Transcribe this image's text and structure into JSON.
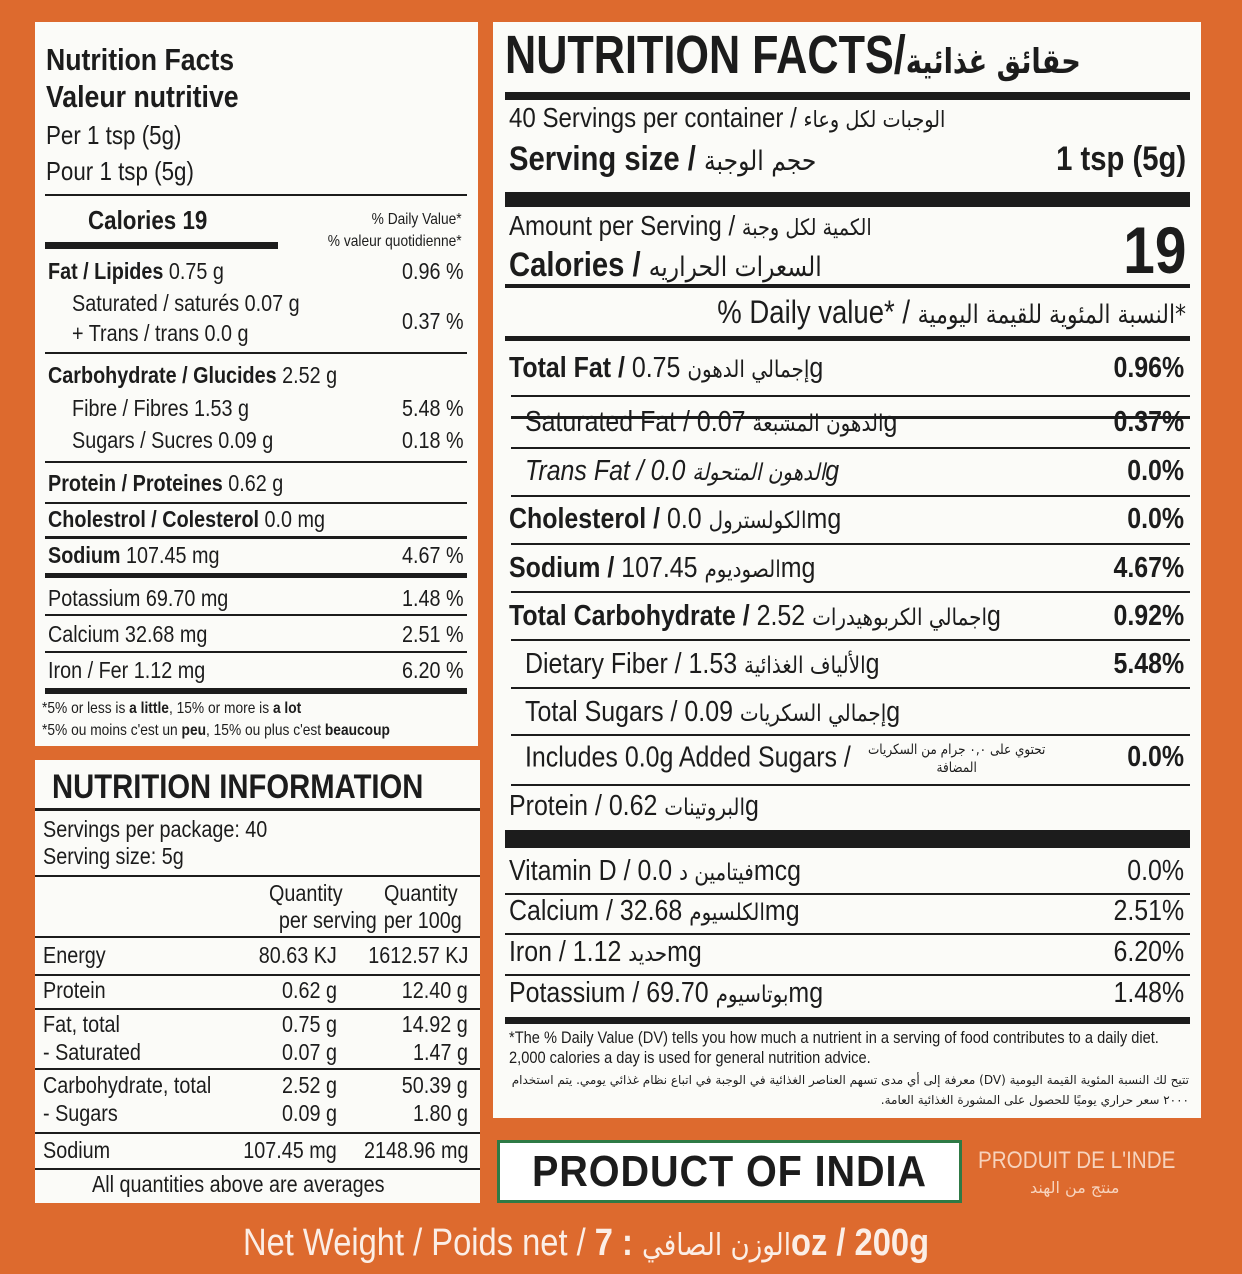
{
  "left_panel": {
    "title_en": "Nutrition Facts",
    "title_fr": "Valeur nutritive",
    "per_en": "Per 1 tsp (5g)",
    "per_fr": "Pour 1 tsp (5g)",
    "calories": "Calories 19",
    "dv_en": "% Daily Value*",
    "dv_fr": "% valeur quotidienne*",
    "rows": [
      {
        "label": "Fat / Lipides",
        "amount": " 0.75 g",
        "dv": "0.96 %"
      },
      {
        "label": "Saturated / saturés 0.07 g",
        "amount": "",
        "dv": ""
      },
      {
        "label": "+ Trans / trans 0.0 g",
        "amount": "",
        "dv": "0.37 %"
      },
      {
        "label": "Carbohydrate / Glucides",
        "amount": " 2.52 g",
        "dv": ""
      },
      {
        "label": "Fibre / Fibres 1.53 g",
        "amount": "",
        "dv": "5.48 %"
      },
      {
        "label": "Sugars / Sucres 0.09 g",
        "amount": "",
        "dv": "0.18 %"
      },
      {
        "label": "Protein / Proteines",
        "amount": " 0.62 g",
        "dv": ""
      },
      {
        "label": "Cholestrol / Colesterol",
        "amount": " 0.0 mg",
        "dv": ""
      },
      {
        "label": "Sodium",
        "amount": " 107.45 mg",
        "dv": "4.67 %"
      },
      {
        "label": "Potassium 69.70 mg",
        "amount": "",
        "dv": "1.48 %"
      },
      {
        "label": "Calcium 32.68 mg",
        "amount": "",
        "dv": "2.51 %"
      },
      {
        "label": "Iron / Fer 1.12 mg",
        "amount": "",
        "dv": "6.20 %"
      }
    ],
    "footnote_en": [
      "*5% or less is ",
      "a little",
      ", 15% or more is ",
      "a lot"
    ],
    "footnote_fr": [
      "*5% ou moins c'est un ",
      "peu",
      ", 15% ou plus c'est ",
      "beaucoup"
    ]
  },
  "info_panel": {
    "title": "NUTRITION INFORMATION",
    "servings": "Servings per package: 40",
    "serving_size": "Serving size: 5g",
    "col1": [
      "Quantity",
      "per serving"
    ],
    "col2": [
      "Quantity",
      "per 100g"
    ],
    "rows": [
      {
        "label": "Energy",
        "v1": "80.63 KJ",
        "v2": "1612.57 KJ"
      },
      {
        "label": "Protein",
        "v1": "0.62 g",
        "v2": "12.40 g"
      },
      {
        "label": "Fat, total",
        "v1": "0.75 g",
        "v2": "14.92 g"
      },
      {
        "label": "- Saturated",
        "v1": "0.07 g",
        "v2": "1.47 g"
      },
      {
        "label": "Carbohydrate, total",
        "v1": "2.52 g",
        "v2": "50.39 g"
      },
      {
        "label": "- Sugars",
        "v1": "0.09 g",
        "v2": "1.80 g"
      },
      {
        "label": "Sodium",
        "v1": "107.45 mg",
        "v2": "2148.96 mg"
      }
    ],
    "footer": "All quantities above are averages"
  },
  "us_panel": {
    "title": "NUTRITION FACTS/",
    "title_ar": "حقائق غذائية",
    "servings": "40 Servings per container / ",
    "servings_ar": "الوجبات لكل وعاء",
    "serving_size": "Serving size / ",
    "serving_size_ar": "حجم الوجبة",
    "serving_value": "1 tsp (5g)",
    "amount": "Amount per Serving / ",
    "amount_ar": "الكمية لكل وجبة",
    "calories": "Calories / ",
    "calories_ar": "السعرات الحراريه",
    "calories_value": "19",
    "dv": "% Daily value* / ",
    "dv_ar": "النسبة المئوية للقيمة اليومية*",
    "rows": [
      {
        "en": "Total Fat / ",
        "ar": "إجمالي الدهون",
        "amt": " 0.75g",
        "dv": "0.96%"
      },
      {
        "en": "Saturated Fat / ",
        "ar": "الدهون المشبعة",
        "amt": " 0.07g",
        "dv": "0.37%"
      },
      {
        "en": "Trans Fat / ",
        "ar": "الدهون المتحولة",
        "amt": " 0.0g",
        "dv": "0.0%"
      },
      {
        "en": "Cholesterol / ",
        "ar": "الكولسترول",
        "amt": " 0.0mg",
        "dv": "0.0%"
      },
      {
        "en": "Sodium / ",
        "ar": "الصوديوم",
        "amt": " 107.45mg",
        "dv": "4.67%"
      },
      {
        "en": "Total Carbohydrate / ",
        "ar": "اجمالي الكربوهيدرات",
        "amt": " 2.52g",
        "dv": "0.92%"
      },
      {
        "en": "Dietary Fiber / ",
        "ar": "الألياف الغذائية",
        "amt": " 1.53g",
        "dv": "5.48%"
      },
      {
        "en": "Total Sugars / ",
        "ar": "إجمالي السكريات",
        "amt": " 0.09g",
        "dv": ""
      },
      {
        "en": "Includes 0.0g Added Sugars / ",
        "ar": "تحتوي على ٠,٠ جرام من السكريات المضافة",
        "amt": "",
        "dv": "0.0%"
      },
      {
        "en": "Protein / ",
        "ar": "البروتينات",
        "amt": " 0.62g",
        "dv": ""
      },
      {
        "en": "Vitamin D / ",
        "ar": "فيتامين د",
        "amt": "  0.0mcg",
        "dv": "0.0%"
      },
      {
        "en": "Calcium / ",
        "ar": "الكلسيوم",
        "amt": " 32.68mg",
        "dv": "2.51%"
      },
      {
        "en": "Iron / ",
        "ar": "حديد",
        "amt": " 1.12mg",
        "dv": "6.20%"
      },
      {
        "en": "Potassium / ",
        "ar": "بوتاسيوم",
        "amt": " 69.70mg",
        "dv": "1.48%"
      }
    ],
    "footnote_en": "*The % Daily Value (DV) tells you how much a nutrient in a serving of food contributes to a daily diet. 2,000 calories a day is used for general nutrition advice.",
    "footnote_ar": "تتيح لك النسبة المئوية القيمة اليومية (DV) معرفة إلى أي مدى تسهم العناصر الغذائية في الوجبة في اتباع نظام غذائي يومي. يتم استخدام ٢٠٠٠ سعر حراري يوميًا للحصول على المشورة الغذائية العامة."
  },
  "origin": {
    "en": "PRODUCT OF INDIA",
    "fr": "PRODUIT DE L'INDE",
    "ar": "منتج من الهند"
  },
  "net_weight": {
    "label": "Net Weight / Poids net / ",
    "label_ar": "الوزن الصافي",
    "value": " : 7oz / 200g"
  },
  "colors": {
    "background": "#dd6a2e",
    "panel": "#fbfbf8",
    "origin_border": "#2f7a45"
  }
}
